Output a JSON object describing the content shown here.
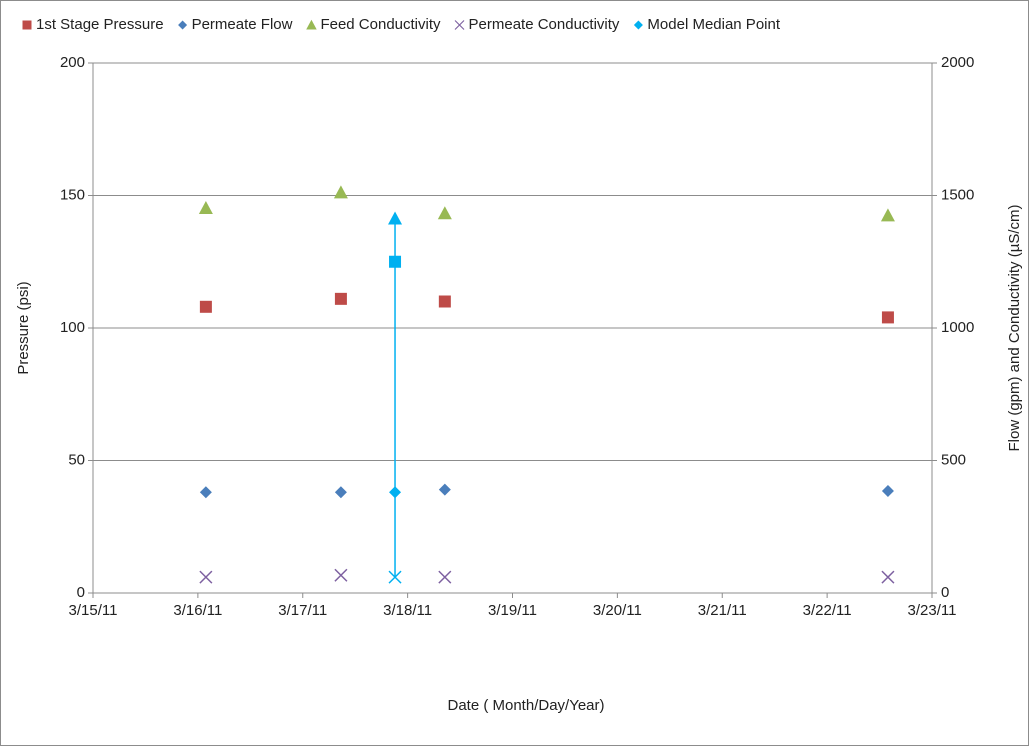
{
  "chart_data": {
    "type": "scatter",
    "x_label": "Date ( Month/Day/Year)",
    "y_label": "Pressure  (psi)",
    "y2_label": "Flow (gpm) and Conductivity (µS/cm)",
    "x": [
      "2011-03-16T01:50",
      "2011-03-17T08:44",
      "2011-03-18T08:31",
      "2011-03-22T13:55"
    ],
    "series": [
      {
        "name": "1st Stage Pressure",
        "color": "#be4b48",
        "marker": "square",
        "axis": "y",
        "values": [
          108,
          111,
          110,
          104
        ]
      },
      {
        "name": "Permeate Flow",
        "color": "#4a7ebb",
        "marker": "diamond",
        "axis": "y2",
        "values": [
          380,
          380,
          390,
          385
        ]
      },
      {
        "name": "Feed Conductivity",
        "color": "#98b954",
        "marker": "triangle",
        "axis": "y2",
        "values": [
          1453,
          1512,
          1433,
          1425
        ]
      },
      {
        "name": "Permeate Conductivity",
        "color": "#7d60a0",
        "marker": "cross",
        "axis": "y2",
        "values": [
          60,
          67,
          60,
          60
        ]
      }
    ],
    "median": {
      "name": "Model Median Point",
      "color": "#00b0f0",
      "x": "2011-03-17T21:07",
      "pressure": 125,
      "flow": 380,
      "feed_conductivity": 1413,
      "permeate_conductivity": 60
    },
    "xlim": [
      "2011-03-15",
      "2011-03-23"
    ],
    "xticks": [
      {
        "value": "2011-03-15",
        "label": "3/15/11"
      },
      {
        "value": "2011-03-16",
        "label": "3/16/11"
      },
      {
        "value": "2011-03-17",
        "label": "3/17/11"
      },
      {
        "value": "2011-03-18",
        "label": "3/18/11"
      },
      {
        "value": "2011-03-19",
        "label": "3/19/11"
      },
      {
        "value": "2011-03-20",
        "label": "3/20/11"
      },
      {
        "value": "2011-03-21",
        "label": "3/21/11"
      },
      {
        "value": "2011-03-22",
        "label": "3/22/11"
      },
      {
        "value": "2011-03-23",
        "label": "3/23/11"
      }
    ],
    "ylim": [
      0,
      200
    ],
    "yticks": [
      0,
      50,
      100,
      150,
      200
    ],
    "y2lim": [
      0,
      2000
    ],
    "y2ticks": [
      0,
      500,
      1000,
      1500,
      2000
    ],
    "grid": true
  }
}
